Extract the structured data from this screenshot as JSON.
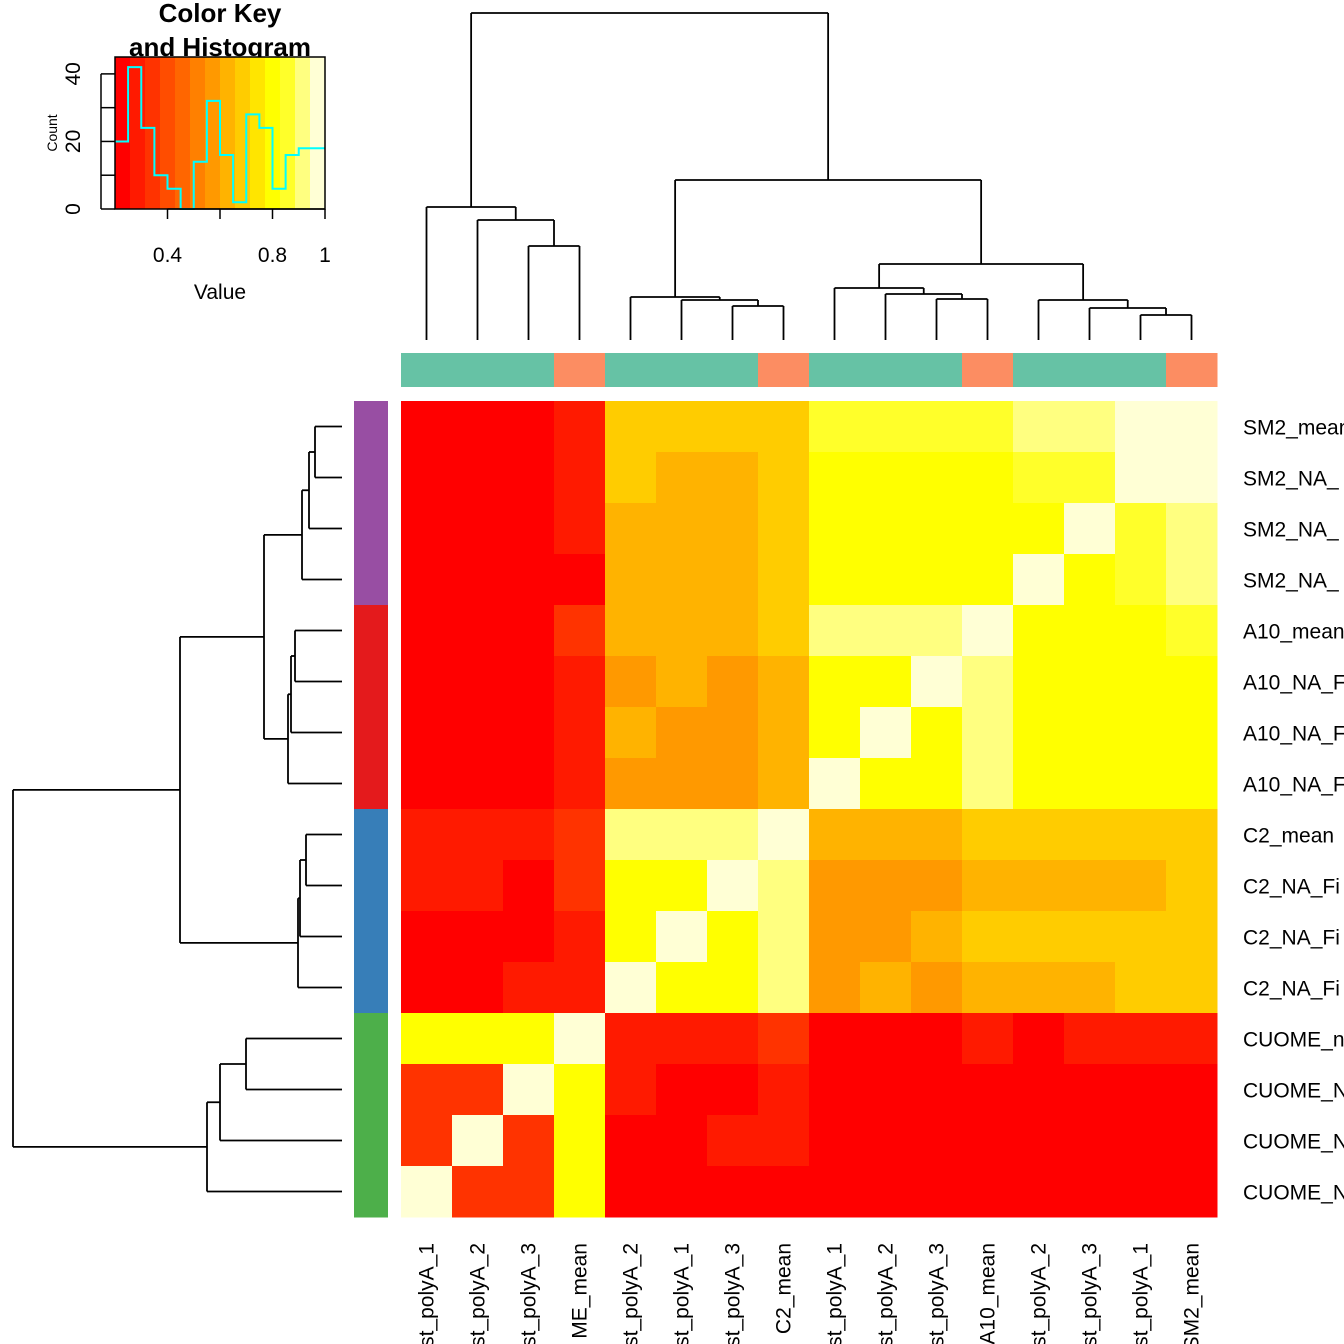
{
  "chart_data": {
    "type": "heatmap",
    "title": "",
    "color_key": {
      "title_line1": "Color Key",
      "title_line2": "and Histogram",
      "xlabel": "Value",
      "ylabel": "Count",
      "x_ticks": [
        "0.4",
        "0.8",
        "1"
      ],
      "y_ticks": [
        "0",
        "20",
        "40"
      ],
      "value_range": [
        0.2,
        1.0
      ],
      "count_range": [
        0,
        45
      ],
      "palette": [
        "#FF0000",
        "#FF1A00",
        "#FF3300",
        "#FF4D00",
        "#FF6600",
        "#FF8000",
        "#FF9900",
        "#FFB300",
        "#FFCC00",
        "#FFE500",
        "#FFFF00",
        "#FFFF2A",
        "#FFFF80",
        "#FFFFD5"
      ],
      "histogram": {
        "bins": [
          0.2,
          0.25,
          0.3,
          0.35,
          0.4,
          0.45,
          0.5,
          0.55,
          0.6,
          0.65,
          0.7,
          0.75,
          0.8,
          0.85,
          0.9,
          0.95,
          1.0
        ],
        "counts": [
          20,
          42,
          24,
          10,
          6,
          0,
          14,
          32,
          16,
          2,
          28,
          24,
          6,
          16,
          18,
          18
        ],
        "line_color": "#00FFFF"
      }
    },
    "column_labels": [
      "...st_polyA_1",
      "...st_polyA_2",
      "...st_polyA_3",
      "...ME_mean",
      "...st_polyA_2",
      "...st_polyA_1",
      "...st_polyA_3",
      "C2_mean",
      "...st_polyA_1",
      "...st_polyA_2",
      "...st_polyA_3",
      "A10_mean",
      "...st_polyA_2",
      "...st_polyA_3",
      "...st_polyA_1",
      "SM2_mean"
    ],
    "row_labels": [
      "SM2_mean",
      "SM2_NA_...",
      "SM2_NA_...",
      "SM2_NA_...",
      "A10_mean",
      "A10_NA_F...",
      "A10_NA_F...",
      "A10_NA_F...",
      "C2_mean",
      "C2_NA_Fi...",
      "C2_NA_Fi...",
      "C2_NA_Fi...",
      "CUOME_...",
      "CUOME_N...",
      "CUOME_N...",
      "CUOME_N..."
    ],
    "column_label_text": [
      "st_polyA_1",
      "st_polyA_2",
      "st_polyA_3",
      "ME_mean",
      "st_polyA_2",
      "st_polyA_1",
      "st_polyA_3",
      "C2_mean",
      "st_polyA_1",
      "st_polyA_2",
      "st_polyA_3",
      "A10_mean",
      "st_polyA_2",
      "st_polyA_3",
      "st_polyA_1",
      "SM2_mean"
    ],
    "row_label_text": [
      "SM2_mean",
      "SM2_NA_",
      "SM2_NA_",
      "SM2_NA_",
      "A10_mean",
      "A10_NA_F",
      "A10_NA_F",
      "A10_NA_F",
      "C2_mean",
      "C2_NA_Fi",
      "C2_NA_Fi",
      "C2_NA_Fi",
      "CUOME_n",
      "CUOME_N",
      "CUOME_N",
      "CUOME_N"
    ],
    "column_side_colors": [
      "#66C2A5",
      "#66C2A5",
      "#66C2A5",
      "#FC8D62",
      "#66C2A5",
      "#66C2A5",
      "#66C2A5",
      "#FC8D62",
      "#66C2A5",
      "#66C2A5",
      "#66C2A5",
      "#FC8D62",
      "#66C2A5",
      "#66C2A5",
      "#66C2A5",
      "#FC8D62"
    ],
    "row_side_colors": [
      "#984EA3",
      "#984EA3",
      "#984EA3",
      "#984EA3",
      "#E41A1C",
      "#E41A1C",
      "#E41A1C",
      "#E41A1C",
      "#377EB8",
      "#377EB8",
      "#377EB8",
      "#377EB8",
      "#4DAF4A",
      "#4DAF4A",
      "#4DAF4A",
      "#4DAF4A"
    ],
    "matrix": [
      [
        0.2,
        0.25,
        0.25,
        0.29,
        0.68,
        0.68,
        0.68,
        0.71,
        0.83,
        0.83,
        0.83,
        0.85,
        0.93,
        0.93,
        0.97,
        0.97
      ],
      [
        0.2,
        0.25,
        0.25,
        0.29,
        0.68,
        0.64,
        0.64,
        0.66,
        0.79,
        0.79,
        0.79,
        0.82,
        0.85,
        0.85,
        0.97,
        0.97
      ],
      [
        0.2,
        0.25,
        0.21,
        0.29,
        0.64,
        0.64,
        0.64,
        0.66,
        0.79,
        0.79,
        0.79,
        0.82,
        0.82,
        1.0,
        0.85,
        0.91
      ],
      [
        0.2,
        0.2,
        0.2,
        0.23,
        0.64,
        0.64,
        0.64,
        0.68,
        0.79,
        0.79,
        0.79,
        0.82,
        1.0,
        0.82,
        0.85,
        0.91
      ],
      [
        0.24,
        0.24,
        0.24,
        0.32,
        0.64,
        0.64,
        0.64,
        0.68,
        0.91,
        0.91,
        0.91,
        0.99,
        0.82,
        0.82,
        0.82,
        0.85
      ],
      [
        0.2,
        0.25,
        0.25,
        0.27,
        0.59,
        0.64,
        0.59,
        0.64,
        0.79,
        0.79,
        0.99,
        0.91,
        0.79,
        0.79,
        0.79,
        0.82
      ],
      [
        0.2,
        0.25,
        0.25,
        0.27,
        0.64,
        0.59,
        0.59,
        0.64,
        0.79,
        1.0,
        0.79,
        0.91,
        0.79,
        0.79,
        0.79,
        0.82
      ],
      [
        0.2,
        0.25,
        0.25,
        0.27,
        0.59,
        0.59,
        0.59,
        0.64,
        1.0,
        0.79,
        0.79,
        0.91,
        0.79,
        0.79,
        0.79,
        0.82
      ],
      [
        0.27,
        0.27,
        0.27,
        0.35,
        0.91,
        0.91,
        0.91,
        0.99,
        0.64,
        0.64,
        0.64,
        0.68,
        0.68,
        0.68,
        0.68,
        0.71
      ],
      [
        0.27,
        0.27,
        0.21,
        0.32,
        0.82,
        0.82,
        1.0,
        0.91,
        0.59,
        0.59,
        0.59,
        0.64,
        0.64,
        0.64,
        0.64,
        0.68
      ],
      [
        0.24,
        0.24,
        0.24,
        0.3,
        0.82,
        1.0,
        0.82,
        0.91,
        0.59,
        0.59,
        0.64,
        0.68,
        0.68,
        0.68,
        0.68,
        0.71
      ],
      [
        0.24,
        0.24,
        0.27,
        0.3,
        1.0,
        0.82,
        0.82,
        0.91,
        0.59,
        0.64,
        0.59,
        0.64,
        0.64,
        0.64,
        0.68,
        0.71
      ],
      [
        0.78,
        0.78,
        0.82,
        0.99,
        0.3,
        0.3,
        0.3,
        0.34,
        0.25,
        0.25,
        0.25,
        0.3,
        0.23,
        0.26,
        0.26,
        0.26
      ],
      [
        0.34,
        0.34,
        1.0,
        0.82,
        0.27,
        0.23,
        0.23,
        0.27,
        0.23,
        0.23,
        0.23,
        0.23,
        0.2,
        0.2,
        0.23,
        0.23
      ],
      [
        0.32,
        1.0,
        0.34,
        0.78,
        0.25,
        0.25,
        0.27,
        0.27,
        0.23,
        0.23,
        0.23,
        0.23,
        0.21,
        0.25,
        0.25,
        0.25
      ],
      [
        1.0,
        0.32,
        0.34,
        0.78,
        0.23,
        0.23,
        0.25,
        0.25,
        0.2,
        0.2,
        0.2,
        0.22,
        0.21,
        0.21,
        0.21,
        0.21
      ]
    ]
  }
}
